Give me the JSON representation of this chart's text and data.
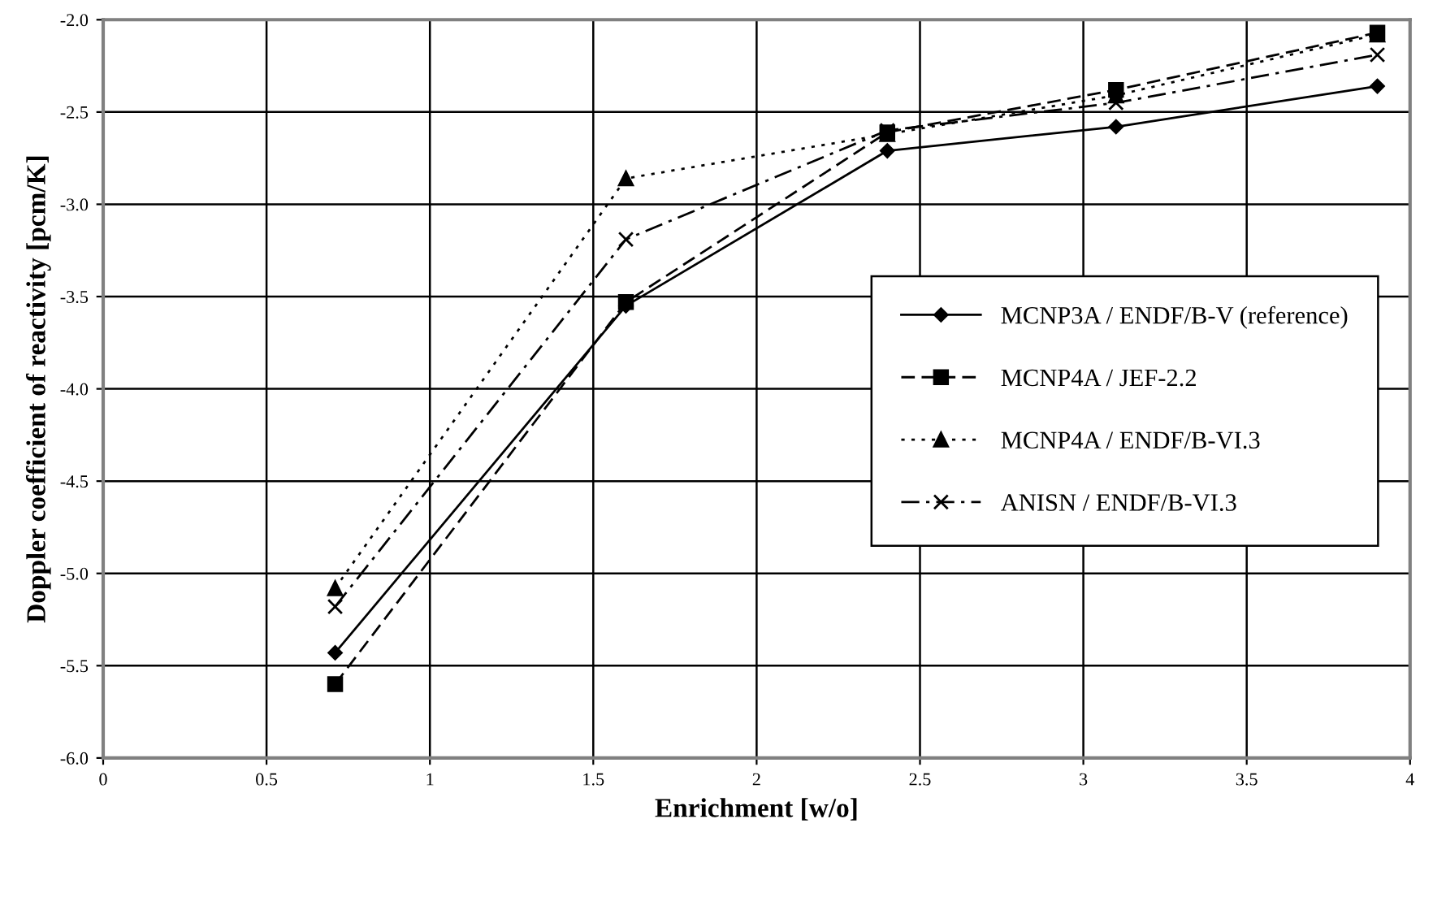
{
  "chart_data": {
    "type": "line",
    "xlabel": "Enrichment [w/o]",
    "ylabel": "Doppler coefficient of reactivity [pcm/K]",
    "x": [
      0.71,
      1.6,
      2.4,
      3.1,
      3.9
    ],
    "series": [
      {
        "name": "MCNP3A / ENDF/B-V (reference)",
        "color": "#000000",
        "marker": "diamond",
        "line_style": "solid",
        "values": [
          -5.43,
          -3.55,
          -2.71,
          -2.58,
          -2.36
        ]
      },
      {
        "name": "MCNP4A / JEF-2.2",
        "color": "#000000",
        "marker": "square",
        "line_style": "dashed",
        "values": [
          -5.6,
          -3.53,
          -2.61,
          -2.38,
          -2.07
        ]
      },
      {
        "name": "MCNP4A / ENDF/B-VI.3",
        "color": "#000000",
        "marker": "triangle",
        "line_style": "dotted",
        "values": [
          -5.08,
          -2.86,
          -2.62,
          -2.41,
          -2.08
        ]
      },
      {
        "name": "ANISN / ENDF/B-VI.3",
        "color": "#000000",
        "marker": "cross",
        "line_style": "dashdot",
        "values": [
          -5.18,
          -3.19,
          -2.6,
          -2.45,
          -2.19
        ]
      }
    ],
    "xlim": [
      0,
      4
    ],
    "xticks": [
      0,
      0.5,
      1,
      1.5,
      2,
      2.5,
      3,
      3.5,
      4
    ],
    "ylim": [
      -6.0,
      -2.0
    ],
    "yticks": [
      {
        "value": -6.0,
        "label": "-6.0"
      },
      {
        "value": -5.5,
        "label": "-5.5"
      },
      {
        "value": -5.0,
        "label": "-5.0"
      },
      {
        "value": -4.5,
        "label": "-4.5"
      },
      {
        "value": -4.0,
        "label": "-4.0"
      },
      {
        "value": -3.5,
        "label": "-3.5"
      },
      {
        "value": -3.0,
        "label": "-3.0"
      },
      {
        "value": -2.5,
        "label": "-2.5"
      },
      {
        "value": -2.0,
        "label": "-2.0"
      }
    ],
    "grid": true,
    "legend": "right"
  }
}
